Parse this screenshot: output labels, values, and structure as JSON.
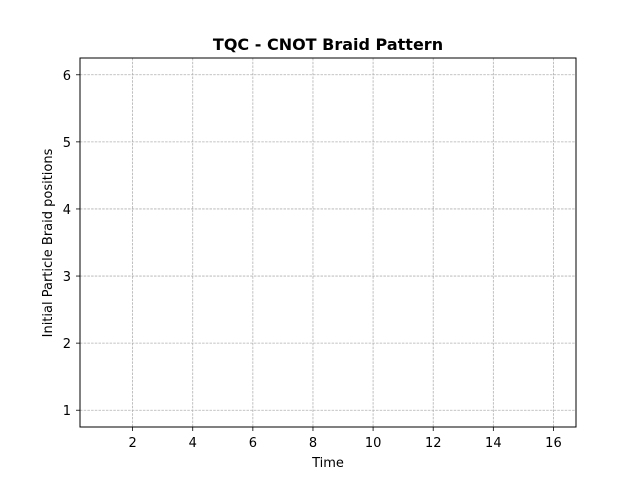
{
  "chart_data": {
    "type": "line",
    "title": "TQC - CNOT Braid Pattern",
    "xlabel": "Time",
    "ylabel": "Initial Particle Braid positions",
    "xlim": [
      0.25,
      16.75
    ],
    "ylim": [
      0.75,
      6.25
    ],
    "xticks": [
      2,
      4,
      6,
      8,
      10,
      12,
      14,
      16
    ],
    "yticks": [
      1,
      2,
      3,
      4,
      5,
      6
    ],
    "grid": true,
    "legend": "none",
    "series": []
  }
}
